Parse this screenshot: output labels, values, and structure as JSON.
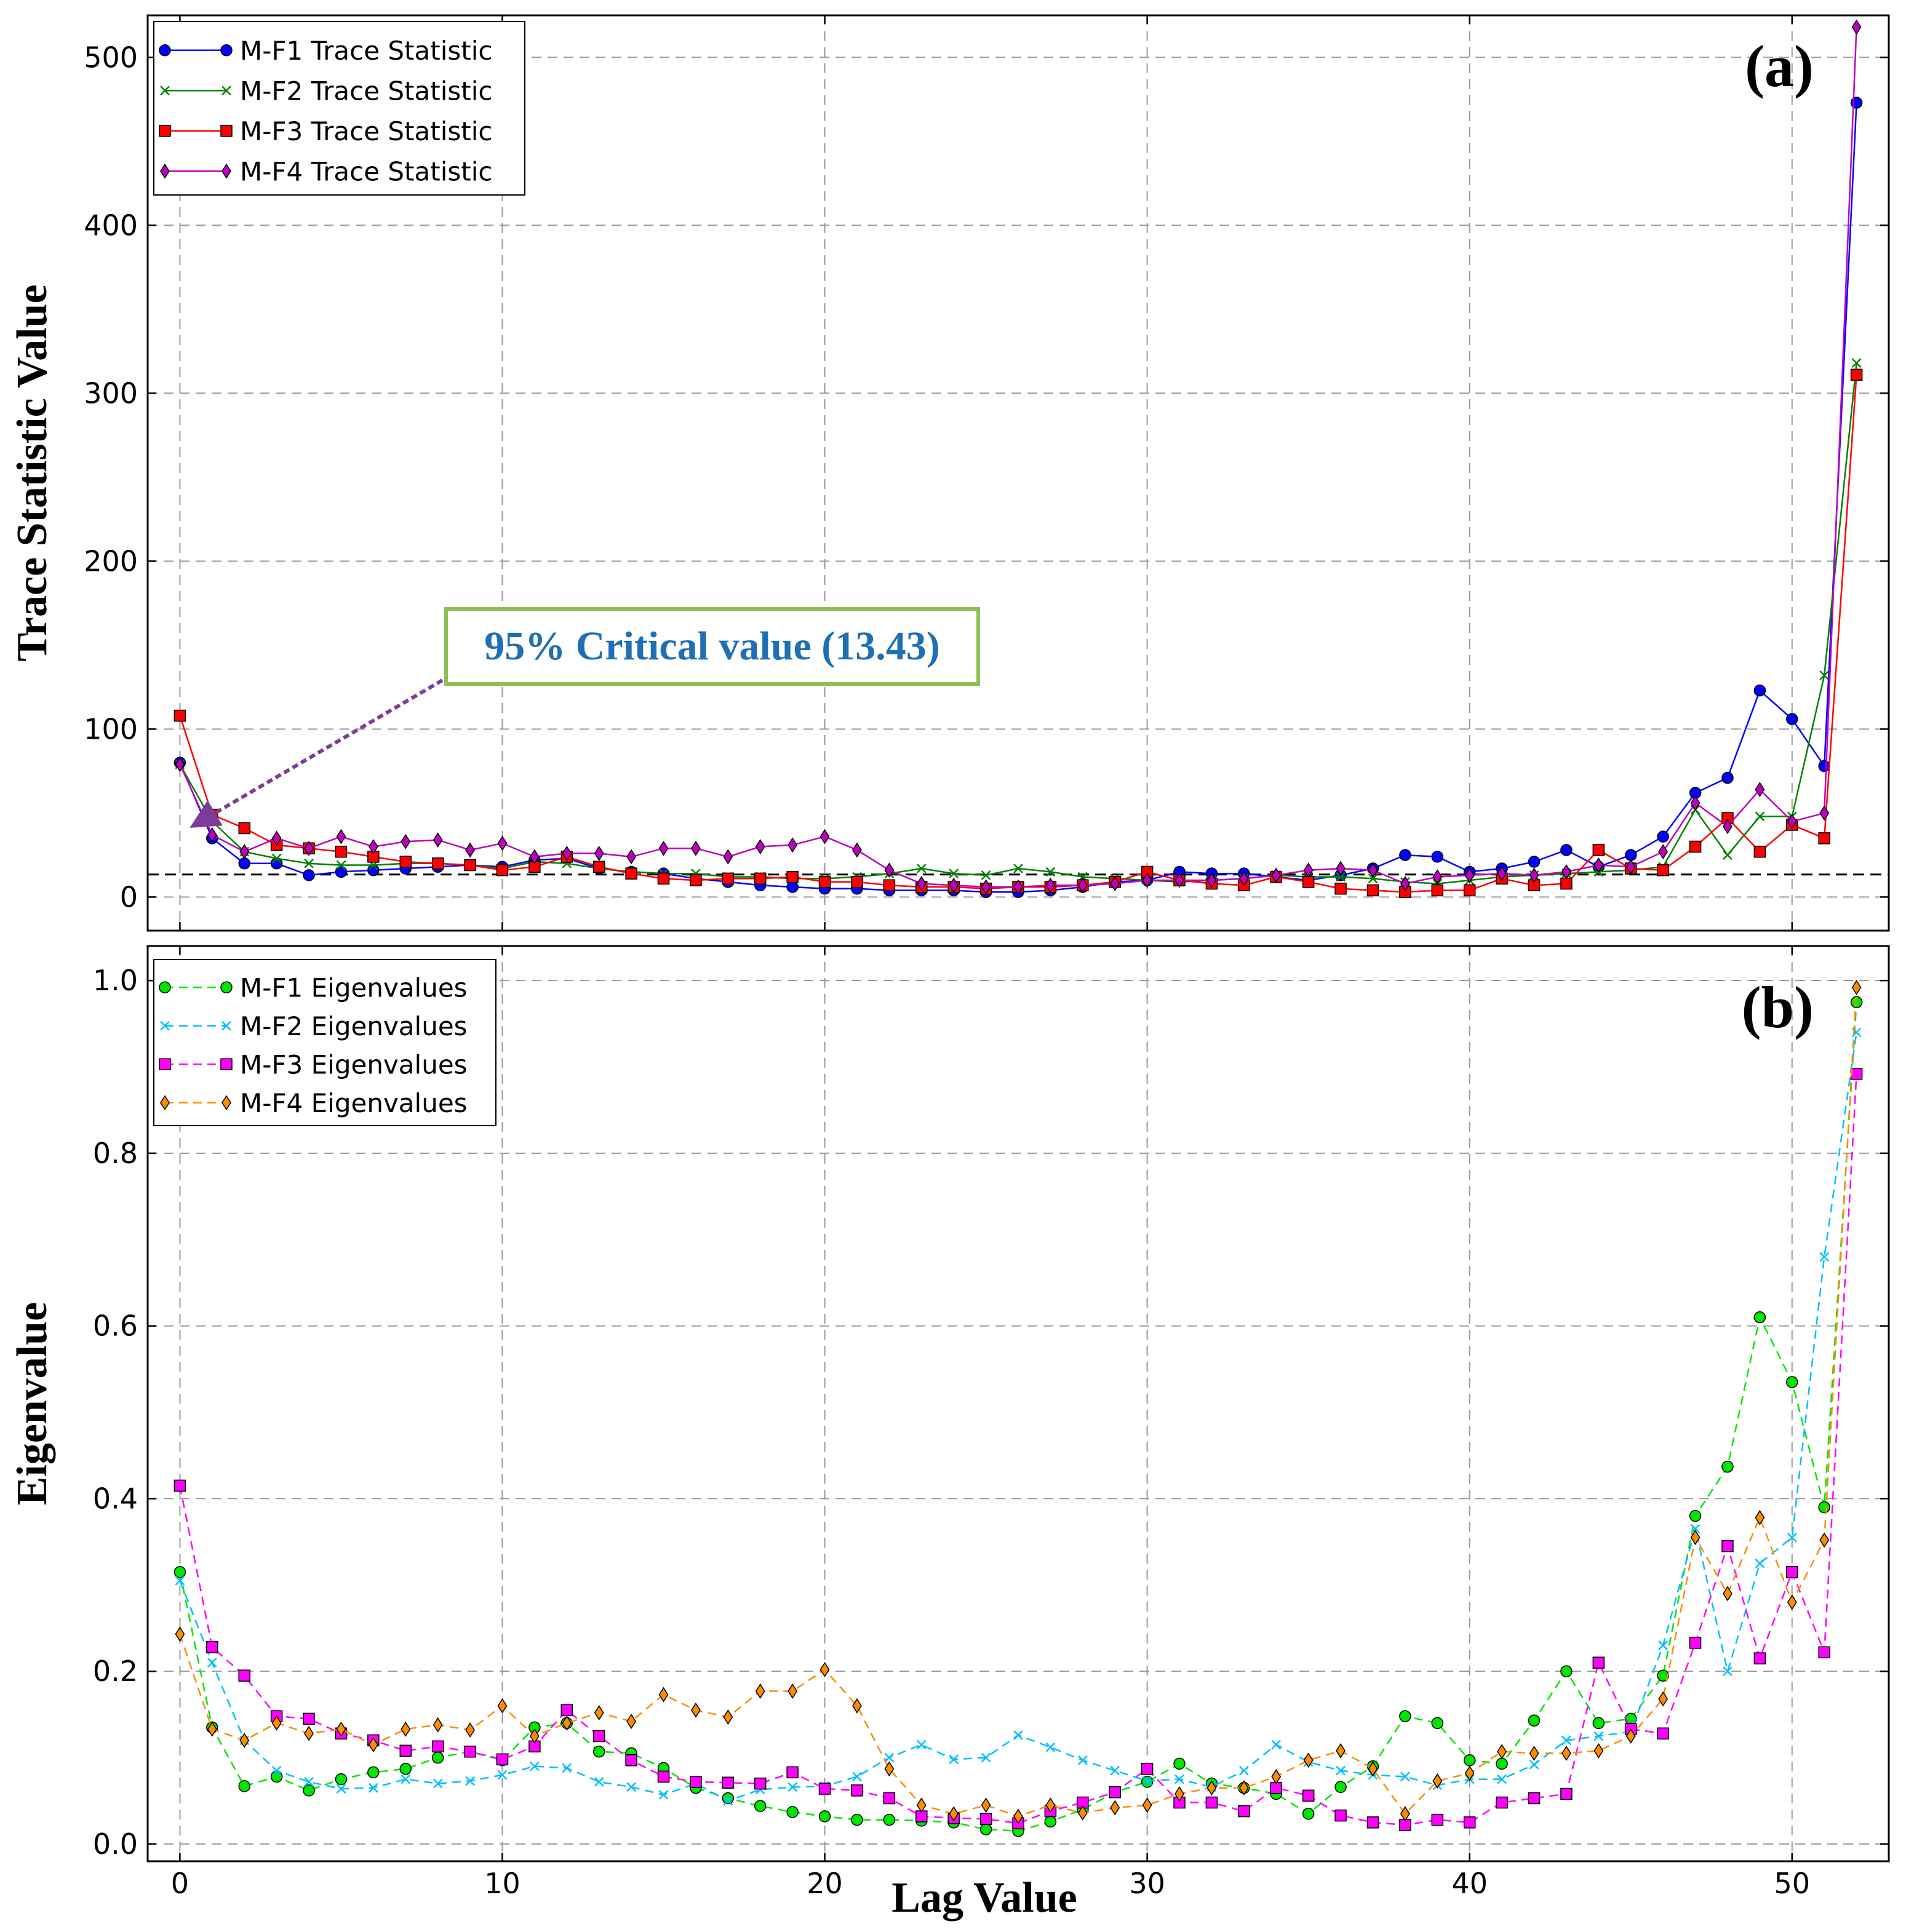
{
  "chart_data": [
    {
      "type": "line",
      "panel_label": "(a)",
      "xlabel": "Lag Value",
      "ylabel": "Trace Statistic Value",
      "xlim": [
        -1,
        53
      ],
      "ylim": [
        -20,
        525
      ],
      "xticks": [
        0,
        10,
        20,
        30,
        40,
        50
      ],
      "yticks": [
        0,
        100,
        200,
        300,
        400,
        500
      ],
      "grid": true,
      "legend_position": "top-left",
      "critical_value": 13.43,
      "annotation": {
        "text": "95% Critical value (13.43)",
        "text_color": "#1f6fb5",
        "box_color": "#8cc152",
        "arrow_color": "#7d3c98",
        "arrow_target_x": 0.5,
        "arrow_target_y": 13.43
      },
      "x": [
        0,
        1,
        2,
        3,
        4,
        5,
        6,
        7,
        8,
        9,
        10,
        11,
        12,
        13,
        14,
        15,
        16,
        17,
        18,
        19,
        20,
        21,
        22,
        23,
        24,
        25,
        26,
        27,
        28,
        29,
        30,
        31,
        32,
        33,
        34,
        35,
        36,
        37,
        38,
        39,
        40,
        41,
        42,
        43,
        44,
        45,
        46,
        47,
        48,
        49,
        50,
        51,
        52
      ],
      "series": [
        {
          "name": "M-F1 Trace Statistic",
          "color": "#0000ff",
          "marker": "circle",
          "dashed": false,
          "values": [
            80,
            35,
            20,
            20,
            13,
            15,
            16,
            17,
            18,
            19,
            18,
            22,
            23,
            17,
            15,
            14,
            11,
            9,
            7,
            6,
            5,
            5,
            4,
            4,
            4,
            3,
            3,
            4,
            6,
            9,
            10,
            15,
            14,
            14,
            12,
            10,
            13,
            17,
            25,
            24,
            15,
            17,
            21,
            28,
            18,
            25,
            36,
            62,
            71,
            123,
            106,
            78,
            473
          ]
        },
        {
          "name": "M-F2 Trace Statistic",
          "color": "#008000",
          "marker": "x",
          "dashed": false,
          "values": [
            79,
            45,
            27,
            23,
            20,
            19,
            19,
            20,
            20,
            19,
            17,
            21,
            20,
            17,
            15,
            14,
            14,
            12,
            12,
            11,
            11,
            12,
            14,
            17,
            14,
            13,
            17,
            15,
            12,
            11,
            10,
            9,
            10,
            11,
            13,
            12,
            12,
            11,
            9,
            8,
            10,
            12,
            13,
            14,
            15,
            16,
            18,
            52,
            25,
            48,
            48,
            132,
            318
          ]
        },
        {
          "name": "M-F3 Trace Statistic",
          "color": "#ff0000",
          "marker": "square",
          "dashed": false,
          "values": [
            108,
            49,
            41,
            31,
            29,
            27,
            24,
            21,
            20,
            19,
            16,
            18,
            24,
            18,
            14,
            11,
            10,
            11,
            11,
            12,
            9,
            9,
            7,
            6,
            6,
            5,
            6,
            6,
            7,
            9,
            15,
            10,
            8,
            7,
            12,
            9,
            5,
            4,
            3,
            4,
            4,
            11,
            7,
            8,
            28,
            17,
            16,
            30,
            47,
            27,
            43,
            35,
            311
          ]
        },
        {
          "name": "M-F4 Trace Statistic",
          "color": "#bf00bf",
          "marker": "diamond",
          "dashed": false,
          "values": [
            79,
            37,
            27,
            35,
            29,
            36,
            30,
            33,
            34,
            28,
            32,
            24,
            26,
            26,
            24,
            29,
            29,
            24,
            30,
            31,
            36,
            28,
            16,
            8,
            7,
            6,
            6,
            7,
            7,
            8,
            10,
            10,
            10,
            11,
            13,
            16,
            17,
            16,
            8,
            12,
            13,
            14,
            13,
            15,
            19,
            18,
            27,
            56,
            42,
            64,
            45,
            50,
            518
          ]
        }
      ]
    },
    {
      "type": "line",
      "panel_label": "(b)",
      "xlabel": "Lag Value",
      "ylabel": "Eigenvalue",
      "xlim": [
        -1,
        53
      ],
      "ylim": [
        -0.02,
        1.04
      ],
      "xticks": [
        0,
        10,
        20,
        30,
        40,
        50
      ],
      "yticks": [
        0.0,
        0.2,
        0.4,
        0.6,
        0.8,
        1.0
      ],
      "ytick_labels": [
        "0.0",
        "0.2",
        "0.4",
        "0.6",
        "0.8",
        "1.0"
      ],
      "grid": true,
      "legend_position": "top-left",
      "x": [
        0,
        1,
        2,
        3,
        4,
        5,
        6,
        7,
        8,
        9,
        10,
        11,
        12,
        13,
        14,
        15,
        16,
        17,
        18,
        19,
        20,
        21,
        22,
        23,
        24,
        25,
        26,
        27,
        28,
        29,
        30,
        31,
        32,
        33,
        34,
        35,
        36,
        37,
        38,
        39,
        40,
        41,
        42,
        43,
        44,
        45,
        46,
        47,
        48,
        49,
        50,
        51,
        52
      ],
      "series": [
        {
          "name": "M-F1 Eigenvalues",
          "color": "#00e600",
          "marker": "circle",
          "dashed": true,
          "values": [
            0.315,
            0.135,
            0.067,
            0.078,
            0.062,
            0.075,
            0.083,
            0.087,
            0.1,
            0.107,
            0.097,
            0.135,
            0.14,
            0.107,
            0.105,
            0.088,
            0.065,
            0.053,
            0.044,
            0.037,
            0.032,
            0.028,
            0.028,
            0.027,
            0.025,
            0.017,
            0.015,
            0.026,
            0.04,
            0.06,
            0.072,
            0.093,
            0.07,
            0.065,
            0.058,
            0.035,
            0.066,
            0.09,
            0.148,
            0.14,
            0.097,
            0.093,
            0.143,
            0.2,
            0.14,
            0.145,
            0.195,
            0.38,
            0.437,
            0.61,
            0.535,
            0.39,
            0.975
          ]
        },
        {
          "name": "M-F2 Eigenvalues",
          "color": "#00bfff",
          "marker": "x",
          "dashed": true,
          "values": [
            0.305,
            0.21,
            0.12,
            0.085,
            0.072,
            0.064,
            0.065,
            0.075,
            0.07,
            0.073,
            0.08,
            0.09,
            0.088,
            0.072,
            0.066,
            0.057,
            0.07,
            0.05,
            0.063,
            0.066,
            0.067,
            0.078,
            0.1,
            0.115,
            0.098,
            0.1,
            0.126,
            0.112,
            0.097,
            0.085,
            0.073,
            0.075,
            0.066,
            0.085,
            0.115,
            0.095,
            0.085,
            0.08,
            0.078,
            0.068,
            0.075,
            0.075,
            0.092,
            0.12,
            0.125,
            0.13,
            0.23,
            0.365,
            0.2,
            0.325,
            0.355,
            0.68,
            0.94
          ]
        },
        {
          "name": "M-F3 Eigenvalues",
          "color": "#ff00ff",
          "marker": "square",
          "dashed": true,
          "values": [
            0.415,
            0.228,
            0.195,
            0.148,
            0.145,
            0.128,
            0.12,
            0.108,
            0.113,
            0.107,
            0.098,
            0.113,
            0.155,
            0.125,
            0.097,
            0.078,
            0.072,
            0.071,
            0.07,
            0.083,
            0.064,
            0.062,
            0.053,
            0.032,
            0.03,
            0.029,
            0.024,
            0.038,
            0.048,
            0.06,
            0.087,
            0.048,
            0.048,
            0.038,
            0.065,
            0.056,
            0.033,
            0.025,
            0.022,
            0.028,
            0.025,
            0.048,
            0.053,
            0.058,
            0.21,
            0.133,
            0.128,
            0.233,
            0.345,
            0.215,
            0.315,
            0.222,
            0.892
          ]
        },
        {
          "name": "M-F4 Eigenvalues",
          "color": "#ff8c00",
          "marker": "diamond",
          "dashed": true,
          "values": [
            0.243,
            0.133,
            0.12,
            0.14,
            0.128,
            0.133,
            0.115,
            0.133,
            0.138,
            0.132,
            0.16,
            0.125,
            0.14,
            0.152,
            0.142,
            0.173,
            0.155,
            0.147,
            0.177,
            0.177,
            0.202,
            0.16,
            0.087,
            0.045,
            0.035,
            0.045,
            0.032,
            0.045,
            0.036,
            0.042,
            0.045,
            0.058,
            0.065,
            0.065,
            0.078,
            0.097,
            0.108,
            0.087,
            0.035,
            0.073,
            0.082,
            0.107,
            0.105,
            0.105,
            0.108,
            0.125,
            0.168,
            0.355,
            0.29,
            0.378,
            0.28,
            0.352,
            0.992
          ]
        }
      ]
    }
  ]
}
